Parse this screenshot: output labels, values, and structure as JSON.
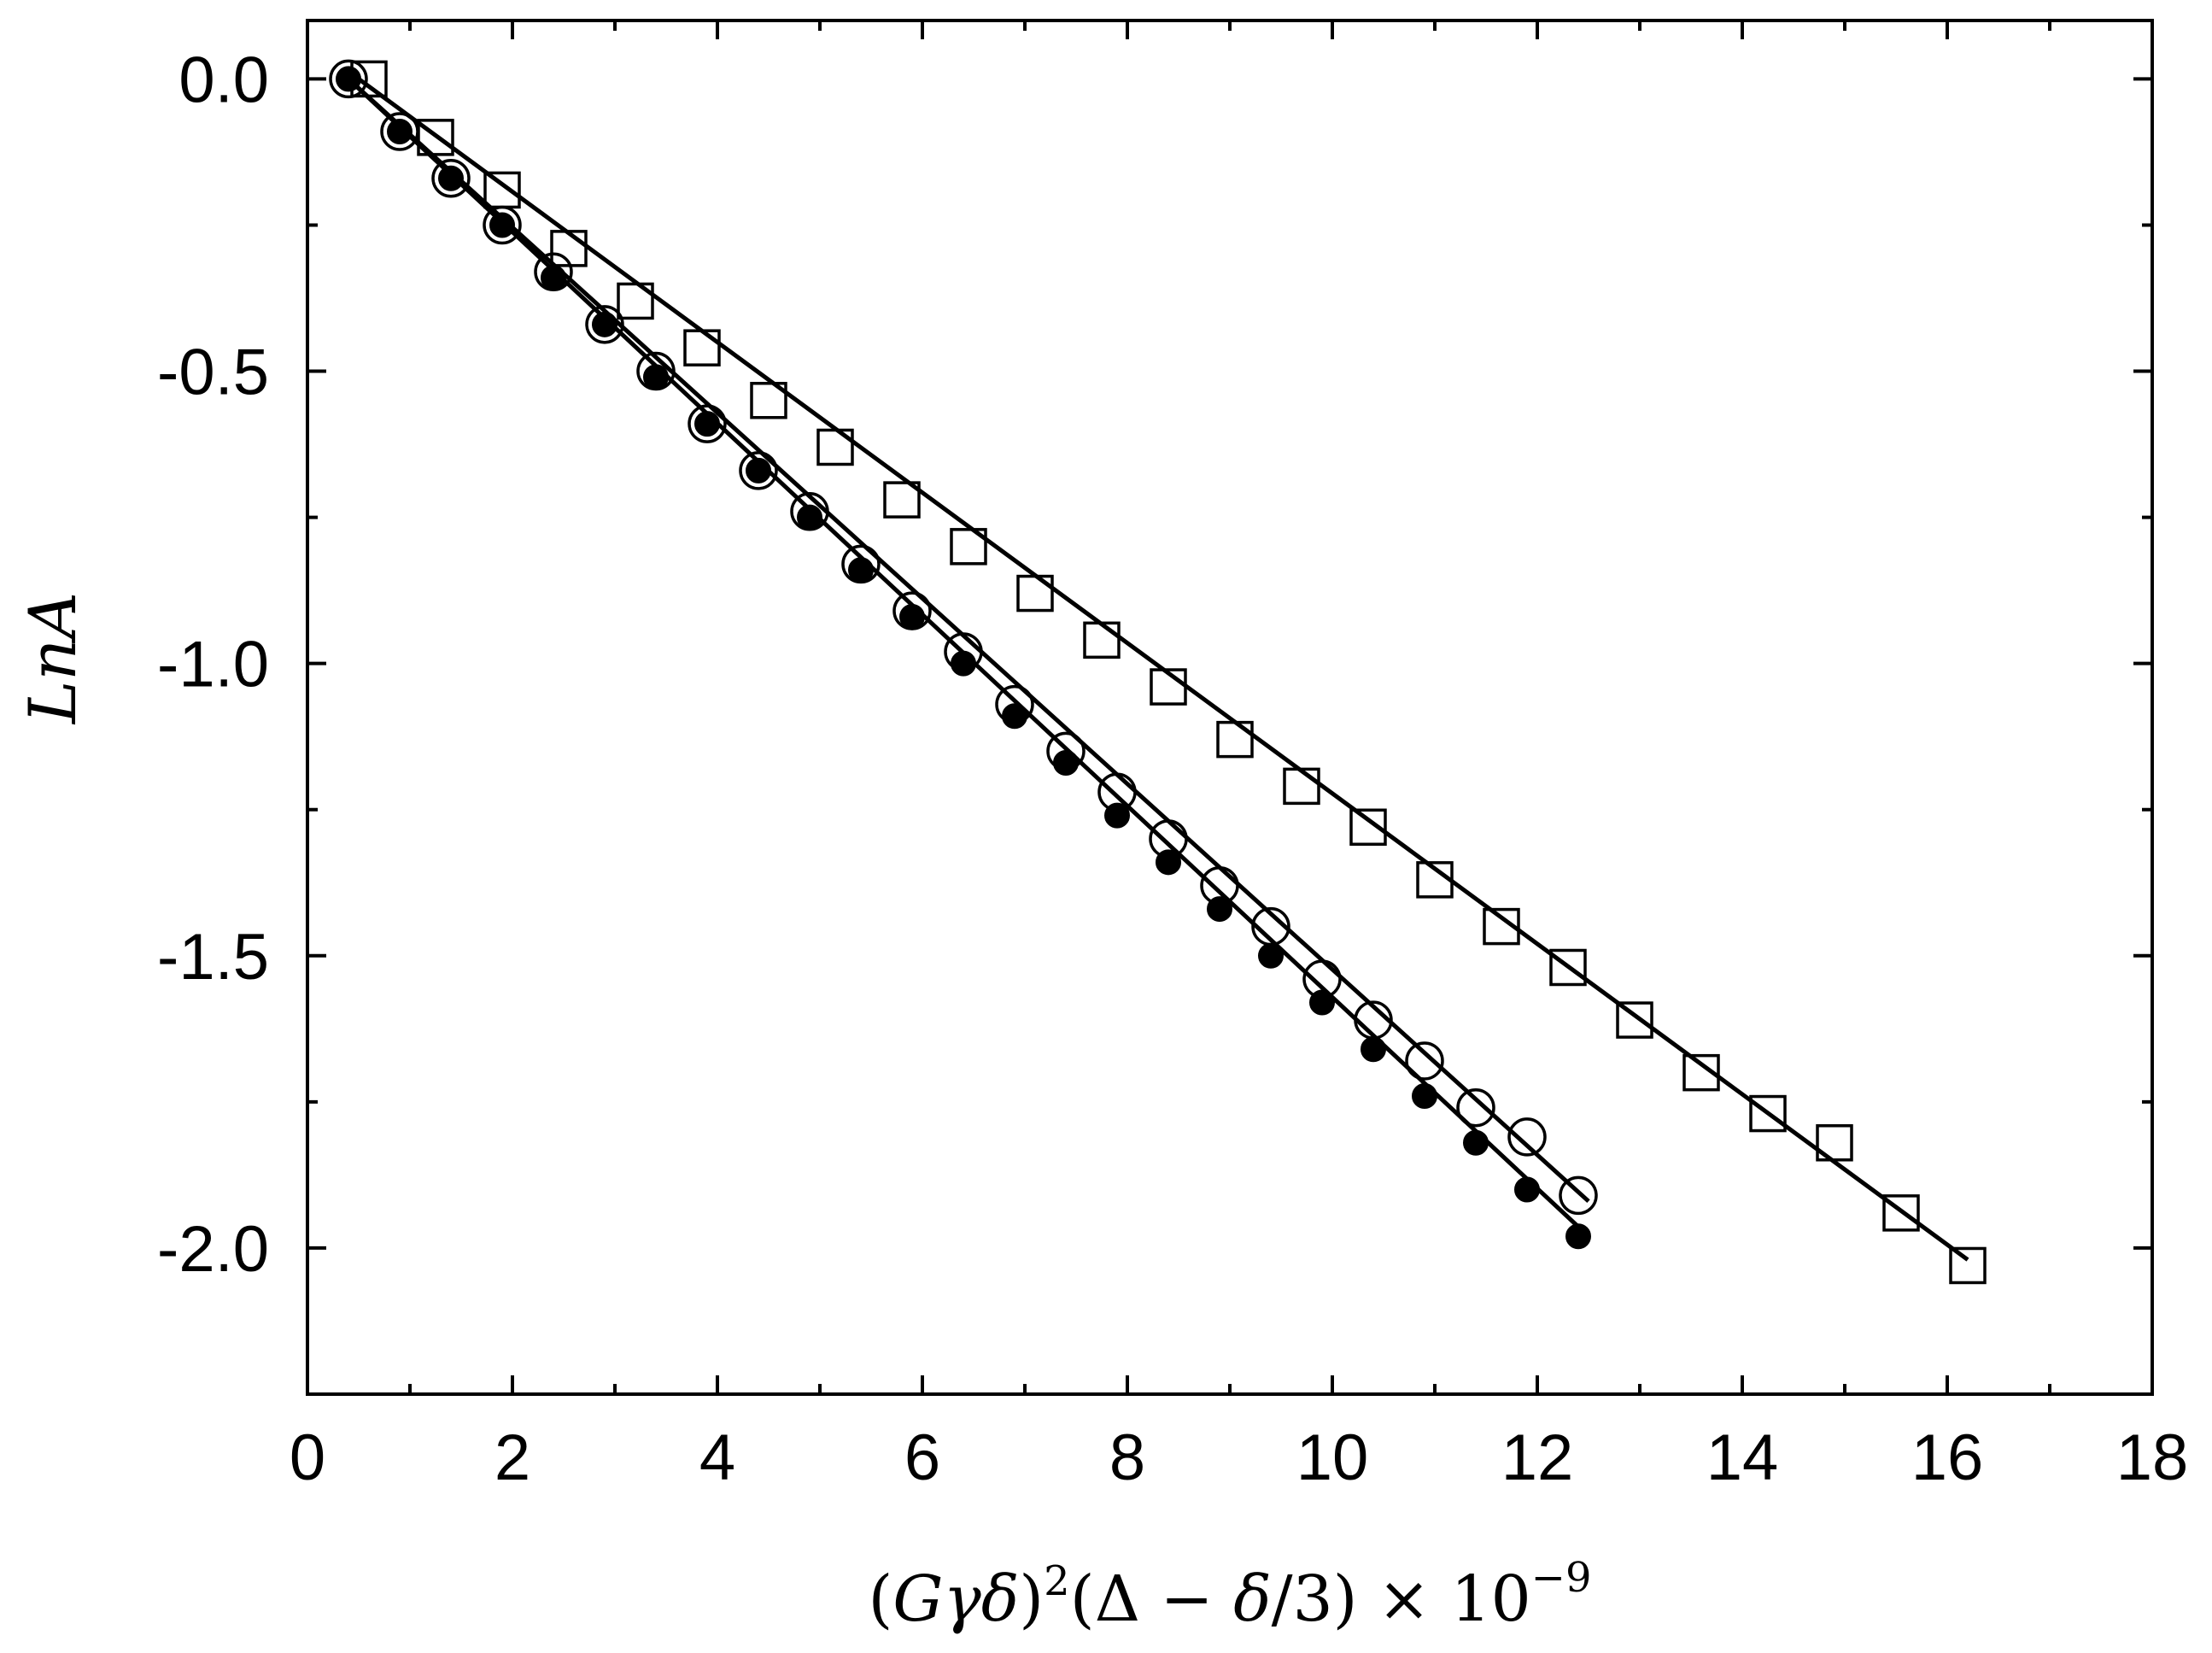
{
  "chart_data": {
    "type": "scatter",
    "title": "",
    "xlabel_parts": {
      "open_paren": "(",
      "G": "G",
      "gamma": "γ",
      "delta": "δ",
      "close_paren": ")",
      "sq": "2",
      "rest_open": "(Δ − ",
      "delta2": "δ",
      "rest_close": "/3) × 10",
      "exp": "−9"
    },
    "ylabel_parts": {
      "Ln": "Ln",
      "A": "A"
    },
    "xlim": [
      0,
      18
    ],
    "ylim": [
      -2.25,
      0.1
    ],
    "grid": false,
    "x_ticks": [
      0,
      2,
      4,
      6,
      8,
      10,
      12,
      14,
      16,
      18
    ],
    "x_tick_labels": [
      "0",
      "2",
      "4",
      "6",
      "8",
      "10",
      "12",
      "14",
      "16",
      "18"
    ],
    "y_ticks": [
      0.0,
      -0.5,
      -1.0,
      -1.5,
      -2.0
    ],
    "y_tick_labels": [
      "0.0",
      "-0.5",
      "-1.0",
      "-1.5",
      "-2.0"
    ],
    "x_minor_ticks": [
      1,
      3,
      5,
      7,
      9,
      11,
      13,
      15,
      17
    ],
    "y_minor_ticks": [
      -0.25,
      -0.75,
      -1.25,
      -1.75
    ],
    "series": [
      {
        "marker": "square-open",
        "x": [
          0.6,
          1.25,
          1.9,
          2.55,
          3.2,
          3.85,
          4.5,
          5.15,
          5.8,
          6.45,
          7.1,
          7.75,
          8.4,
          9.05,
          9.7,
          10.35,
          11.0,
          11.65,
          12.3,
          12.95,
          13.6,
          14.25,
          14.9,
          15.55,
          16.2
        ],
        "y": [
          0.0,
          -0.1,
          -0.19,
          -0.29,
          -0.38,
          -0.46,
          -0.55,
          -0.63,
          -0.72,
          -0.8,
          -0.88,
          -0.96,
          -1.04,
          -1.13,
          -1.21,
          -1.28,
          -1.37,
          -1.45,
          -1.52,
          -1.61,
          -1.7,
          -1.77,
          -1.82,
          -1.94,
          -2.03
        ],
        "fit": {
          "x": [
            0.5,
            16.2
          ],
          "y": [
            0.0,
            -2.02
          ]
        }
      },
      {
        "marker": "circle-open",
        "x": [
          0.4,
          0.9,
          1.4,
          1.9,
          2.4,
          2.9,
          3.4,
          3.9,
          4.4,
          4.9,
          5.4,
          5.9,
          6.4,
          6.9,
          7.4,
          7.9,
          8.4,
          8.9,
          9.4,
          9.9,
          10.4,
          10.9,
          11.4,
          11.9,
          12.4
        ],
        "y": [
          0.0,
          -0.09,
          -0.17,
          -0.25,
          -0.33,
          -0.42,
          -0.5,
          -0.59,
          -0.67,
          -0.74,
          -0.83,
          -0.91,
          -0.98,
          -1.07,
          -1.15,
          -1.22,
          -1.3,
          -1.38,
          -1.45,
          -1.54,
          -1.61,
          -1.68,
          -1.76,
          -1.81,
          -1.91
        ],
        "fit": {
          "x": [
            0.4,
            12.5
          ],
          "y": [
            0.0,
            -1.92
          ]
        }
      },
      {
        "marker": "circle-filled",
        "x": [
          0.4,
          0.9,
          1.4,
          1.9,
          2.4,
          2.9,
          3.4,
          3.9,
          4.4,
          4.9,
          5.4,
          5.9,
          6.4,
          6.9,
          7.4,
          7.9,
          8.4,
          8.9,
          9.4,
          9.9,
          10.4,
          10.9,
          11.4,
          11.9,
          12.4
        ],
        "y": [
          0.0,
          -0.09,
          -0.17,
          -0.25,
          -0.34,
          -0.42,
          -0.51,
          -0.59,
          -0.67,
          -0.75,
          -0.84,
          -0.92,
          -1.0,
          -1.09,
          -1.17,
          -1.26,
          -1.34,
          -1.42,
          -1.5,
          -1.58,
          -1.66,
          -1.74,
          -1.82,
          -1.9,
          -1.98
        ],
        "fit": {
          "x": [
            0.4,
            12.5
          ],
          "y": [
            0.0,
            -1.98
          ]
        }
      }
    ]
  }
}
